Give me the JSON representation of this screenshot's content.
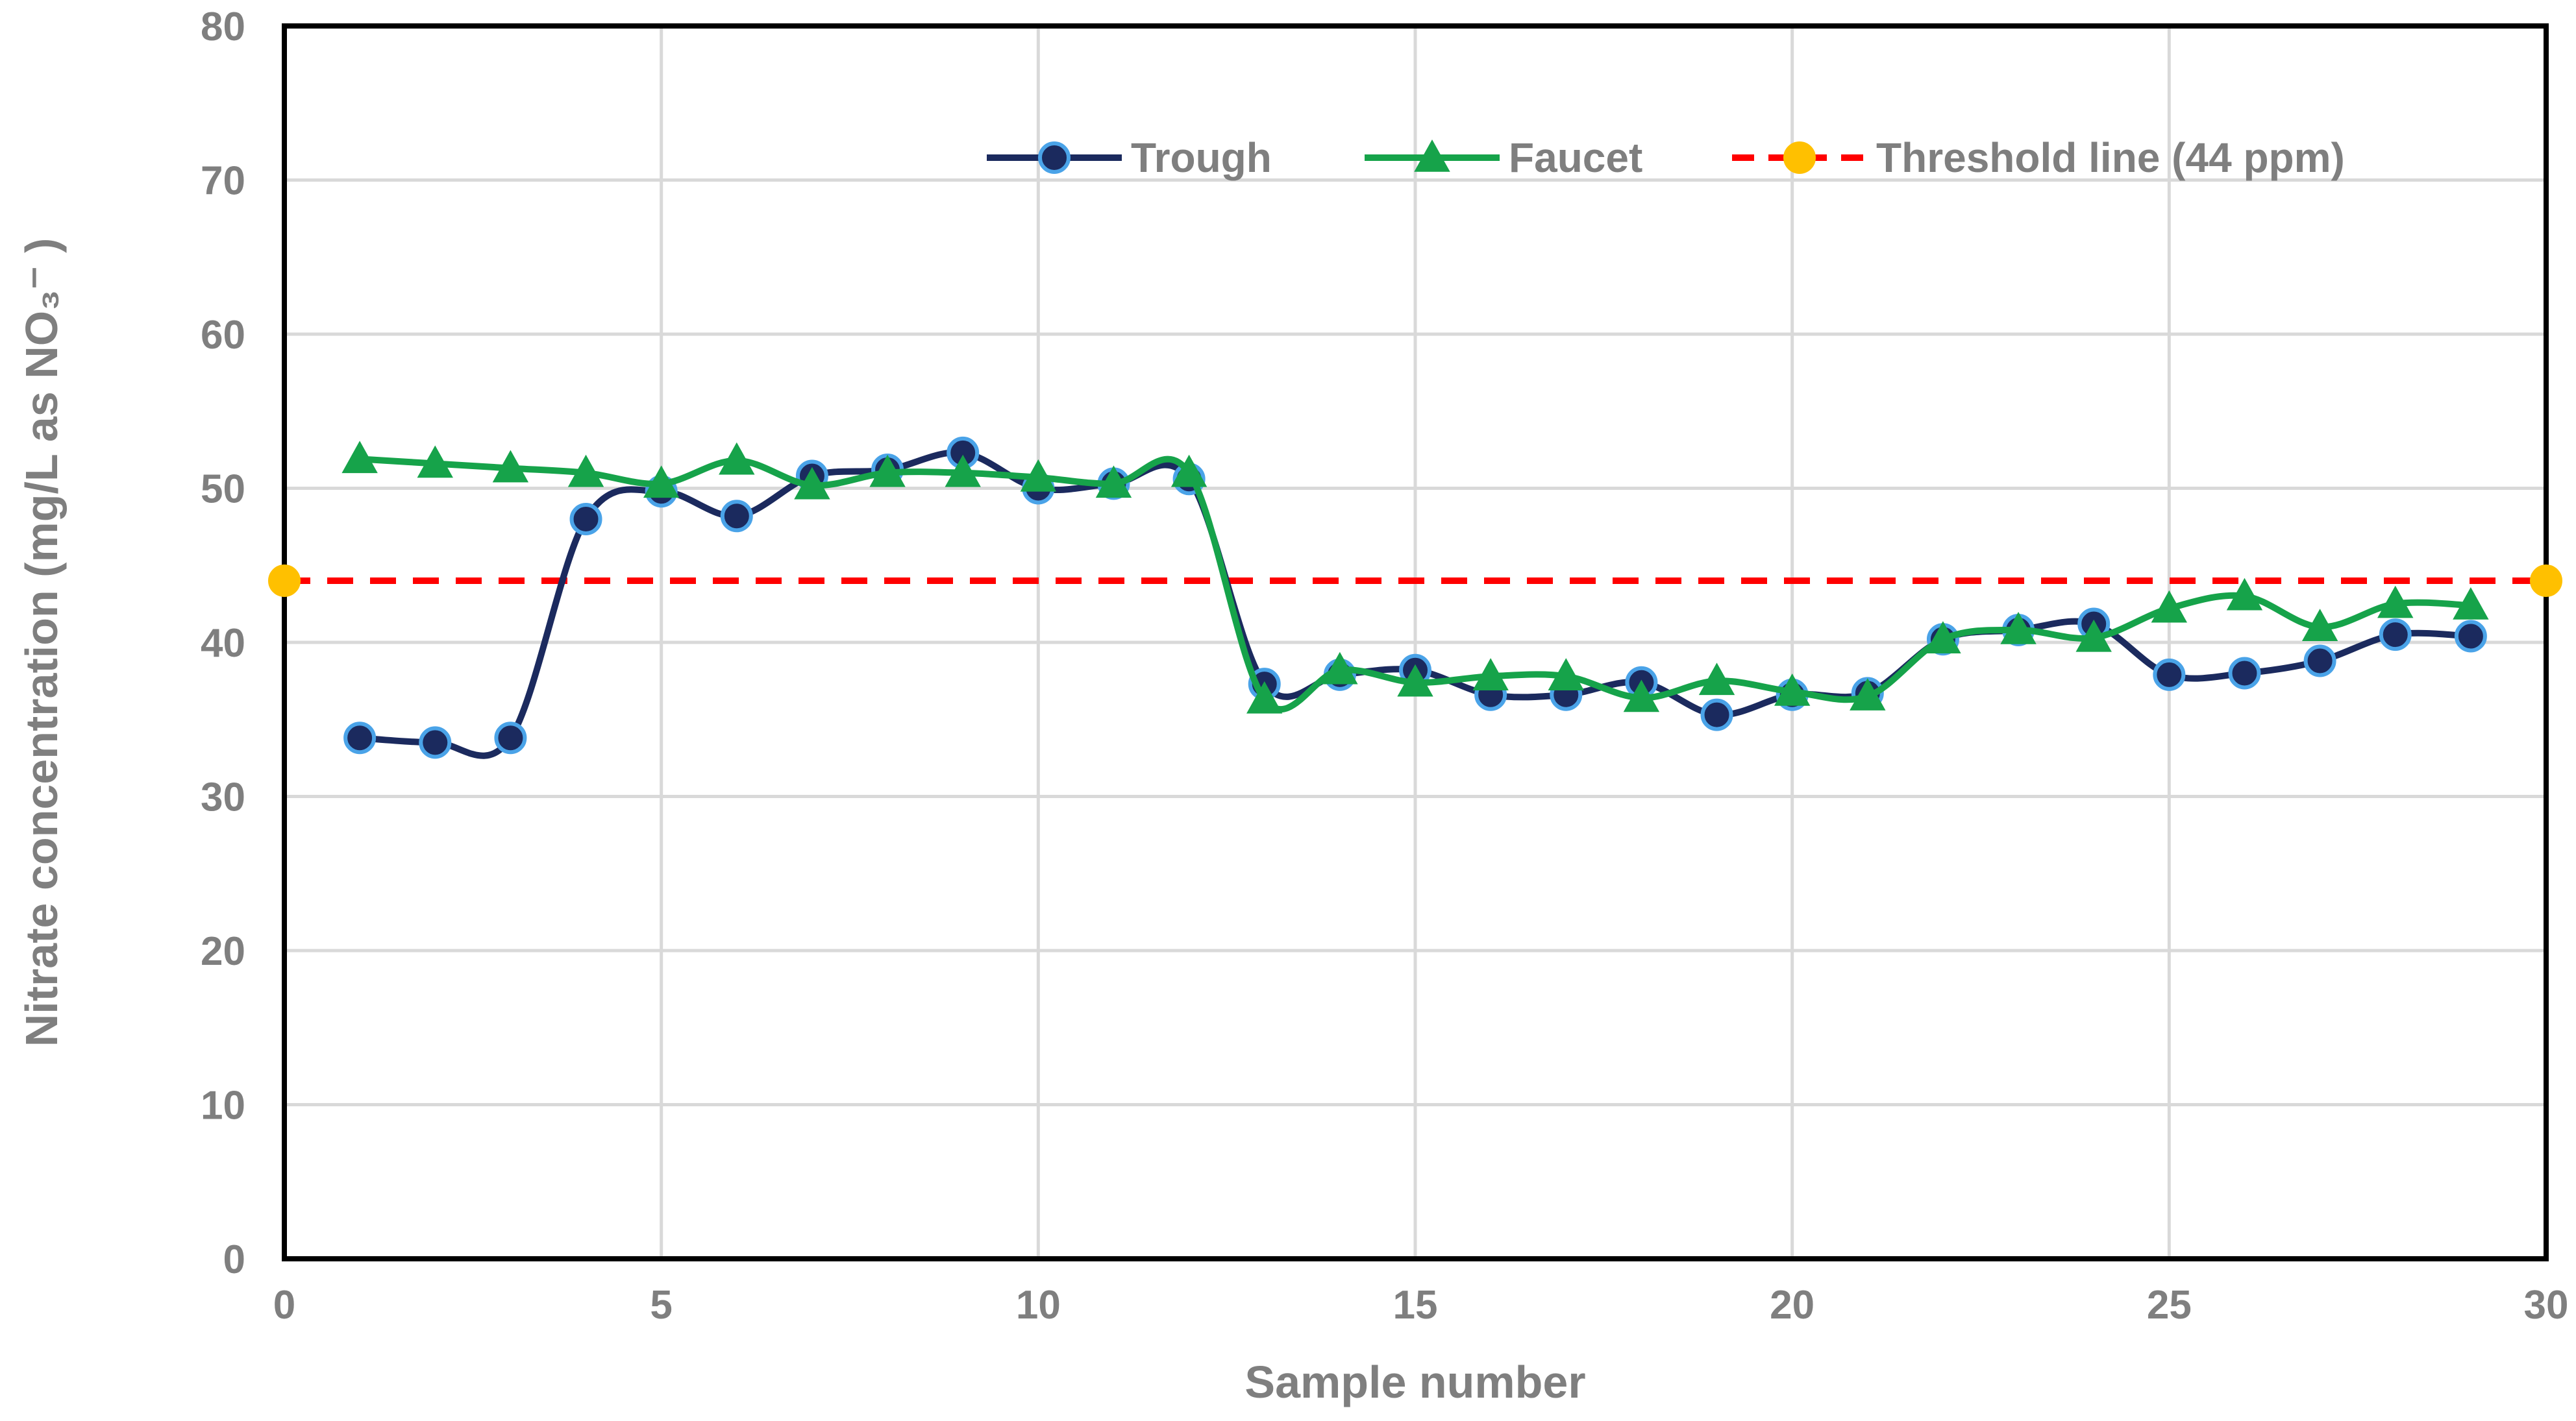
{
  "chart_data": {
    "type": "line",
    "xlabel": "Sample number",
    "ylabel": "Nitrate concentration (mg/L as NO₃⁻ )",
    "xlim": [
      0,
      30
    ],
    "ylim": [
      0,
      80
    ],
    "xticks": [
      0,
      5,
      10,
      15,
      20,
      25,
      30
    ],
    "yticks": [
      0,
      10,
      20,
      30,
      40,
      50,
      60,
      70,
      80
    ],
    "grid": true,
    "legend_position": "top-right",
    "series": [
      {
        "name": "Trough",
        "color": "#1b2a5e",
        "marker": "circle",
        "marker_edge": "#4aa3e8",
        "smooth": true,
        "x": [
          1,
          2,
          3,
          4,
          5,
          6,
          7,
          8,
          9,
          10,
          11,
          12,
          13,
          14,
          15,
          16,
          17,
          18,
          19,
          20,
          21,
          22,
          23,
          24,
          25,
          26,
          27,
          28,
          29
        ],
        "y": [
          33.8,
          33.5,
          33.8,
          48.0,
          49.8,
          48.2,
          50.8,
          51.2,
          52.3,
          50.0,
          50.3,
          50.6,
          37.3,
          37.9,
          38.2,
          36.6,
          36.6,
          37.4,
          35.3,
          36.6,
          36.7,
          40.2,
          40.8,
          41.2,
          37.9,
          38.0,
          38.8,
          40.5,
          40.4
        ]
      },
      {
        "name": "Faucet",
        "color": "#16a34a",
        "marker": "triangle",
        "smooth": true,
        "x": [
          1,
          2,
          3,
          4,
          5,
          6,
          7,
          8,
          9,
          10,
          11,
          12,
          13,
          14,
          15,
          16,
          17,
          18,
          19,
          20,
          21,
          22,
          23,
          24,
          25,
          26,
          27,
          28,
          29
        ],
        "y": [
          51.9,
          51.6,
          51.3,
          51.0,
          50.3,
          51.8,
          50.2,
          51.0,
          51.0,
          50.7,
          50.3,
          51.0,
          36.3,
          38.2,
          37.4,
          37.8,
          37.8,
          36.4,
          37.5,
          36.8,
          36.5,
          40.2,
          40.8,
          40.3,
          42.2,
          43.0,
          41.0,
          42.5,
          42.4
        ]
      },
      {
        "name": "Threshold line (44 ppm)",
        "color": "#ff0000",
        "marker": "circle",
        "marker_color": "#ffc000",
        "dashed": true,
        "x": [
          0,
          30
        ],
        "y": [
          44,
          44
        ]
      }
    ]
  }
}
